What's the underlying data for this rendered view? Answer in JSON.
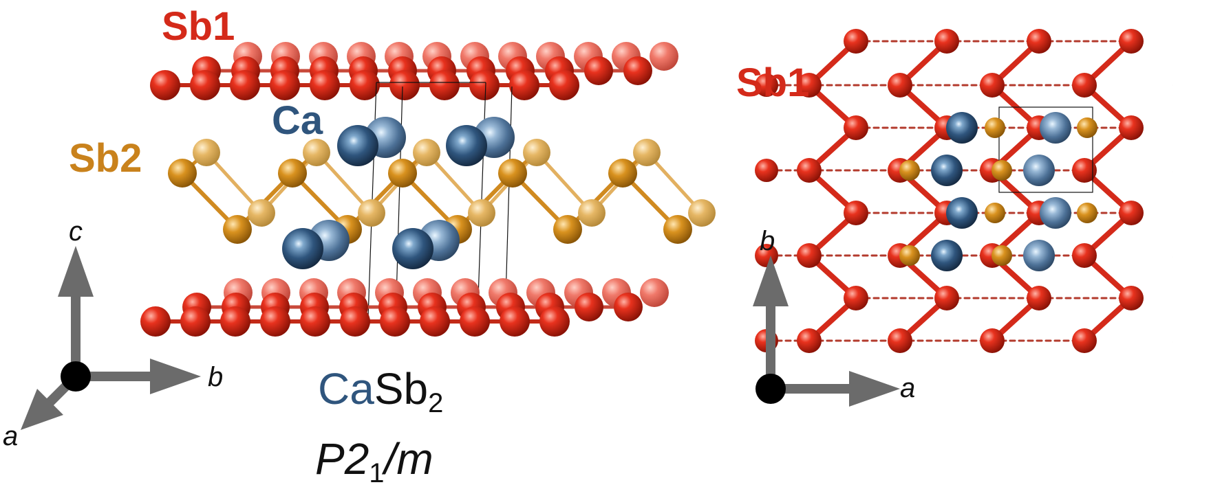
{
  "left_panel": {
    "labels": {
      "sb1": "Sb1",
      "ca": "Ca",
      "sb2": "Sb2"
    },
    "formula": {
      "ca": "Ca",
      "sb": "Sb",
      "sub": "2"
    },
    "space_group": {
      "p": "P2",
      "sub": "1",
      "rest": "/m"
    },
    "axes": {
      "c": "c",
      "b": "b",
      "a": "a"
    }
  },
  "right_panel": {
    "labels": {
      "sb1": "Sb1"
    },
    "axes": {
      "b": "b",
      "a": "a"
    }
  },
  "colors": {
    "sb1": "#d42a1a",
    "sb2": "#d58a1c",
    "ca": "#2f557d",
    "axis": "#6b6b6b",
    "text": "#111111"
  }
}
